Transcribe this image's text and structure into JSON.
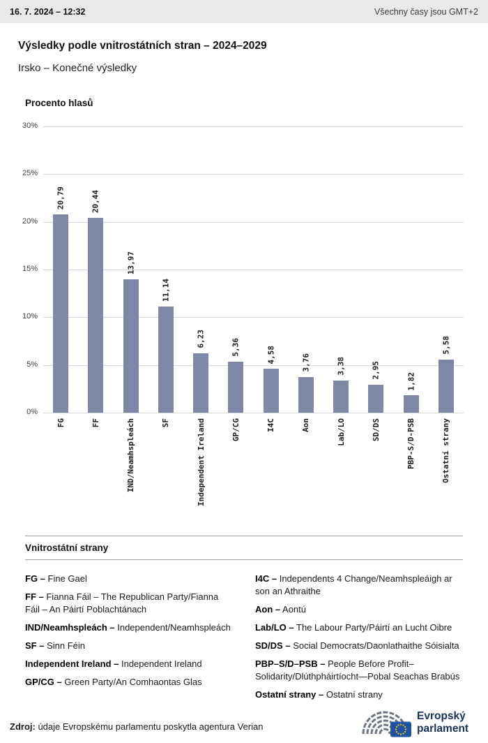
{
  "header": {
    "datetime": "16. 7. 2024 – 12:32",
    "timezone_note": "Všechny časy jsou GMT+2"
  },
  "title": "Výsledky podle vnitrostátních stran – 2024–2029",
  "subtitle": "Irsko – Konečné výsledky",
  "chart_data": {
    "type": "bar",
    "title": "Procento hlasů",
    "categories": [
      "FG",
      "FF",
      "IND/Neamhspleách",
      "SF",
      "Independent Ireland",
      "GP/CG",
      "I4C",
      "Aon",
      "Lab/LO",
      "SD/DS",
      "PBP-S/D-PSB",
      "Ostatní strany"
    ],
    "values": [
      20.79,
      20.44,
      13.97,
      11.14,
      6.23,
      5.36,
      4.58,
      3.76,
      3.38,
      2.95,
      1.82,
      5.58
    ],
    "value_labels": [
      "20,79",
      "20,44",
      "13,97",
      "11,14",
      "6,23",
      "5,36",
      "4,58",
      "3,76",
      "3,38",
      "2,95",
      "1,82",
      "5,58"
    ],
    "ylim": [
      0,
      30
    ],
    "yticks": [
      {
        "label": "0%",
        "value": 0
      },
      {
        "label": "5%",
        "value": 5
      },
      {
        "label": "10%",
        "value": 10
      },
      {
        "label": "15%",
        "value": 15
      },
      {
        "label": "20%",
        "value": 20
      },
      {
        "label": "25%",
        "value": 25
      },
      {
        "label": "30%",
        "value": 30
      }
    ],
    "grid": true,
    "legend_position": "none",
    "bar_color": "#7e87a6"
  },
  "legend": {
    "heading": "Vnitrostátní strany",
    "left": [
      {
        "abbr": "FG –",
        "name": "Fine Gael"
      },
      {
        "abbr": "FF –",
        "name": "Fianna Fáil – The Republican Party/Fianna Fáil – An Páirtí Poblachtánach"
      },
      {
        "abbr": "IND/Neamhspleách –",
        "name": "Independent/Neamhspleách"
      },
      {
        "abbr": "SF –",
        "name": "Sinn Féin"
      },
      {
        "abbr": "Independent Ireland  –",
        "name": "Independent Ireland"
      },
      {
        "abbr": "GP/CG –",
        "name": "Green Party/An Comhaontas Glas"
      }
    ],
    "right": [
      {
        "abbr": "I4C –",
        "name": "Independents 4 Change/Neamhspleáigh ar son an Athraithe"
      },
      {
        "abbr": "Aon –",
        "name": "Aontú"
      },
      {
        "abbr": "Lab/LO –",
        "name": "The Labour Party/Páirtí an Lucht Oibre"
      },
      {
        "abbr": "SD/DS –",
        "name": "Social Democrats/Daonlathaithe Sóisialta"
      },
      {
        "abbr": "PBP–S/D–PSB –",
        "name": "People Before Profit–Solidarity/Dlúthpháirtíocht—Pobal Seachas Brabús"
      },
      {
        "abbr": "Ostatní strany –",
        "name": "Ostatní strany"
      }
    ]
  },
  "footer": {
    "source_label": "Zdroj:",
    "source_text": "údaje Evropskému parlamentu poskytla agentura Verian"
  },
  "logo": {
    "line1": "Evropský",
    "line2": "parlament"
  }
}
